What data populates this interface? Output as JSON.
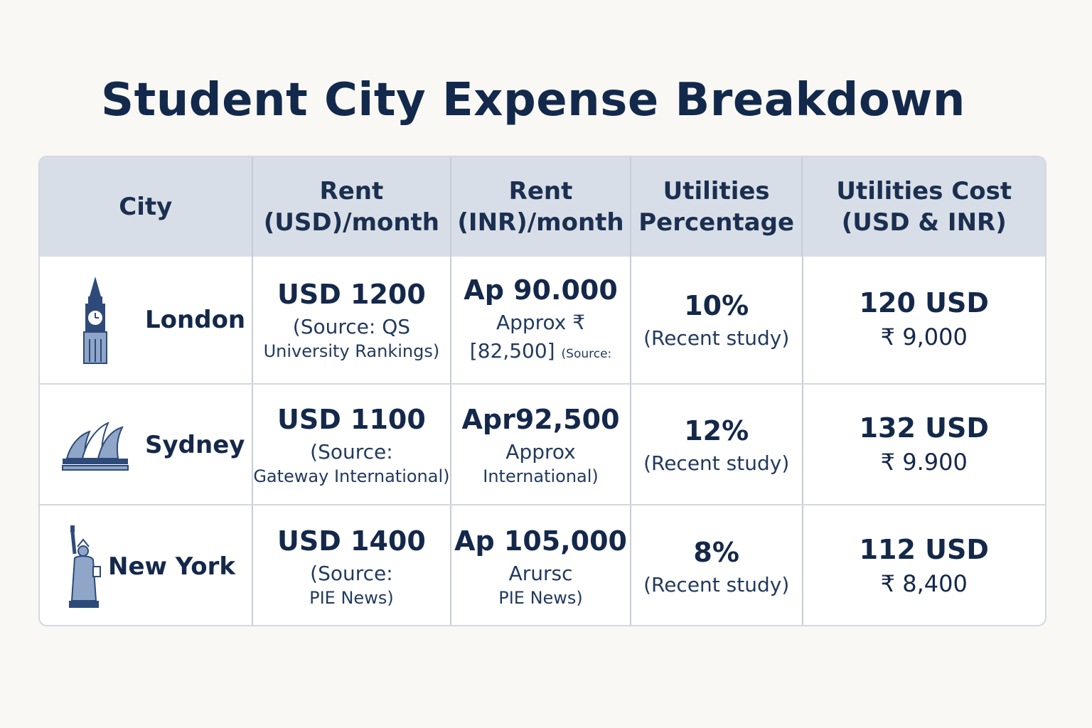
{
  "title": "Student City Expense Breakdown",
  "colors": {
    "title": "#12294b",
    "header_bg": "#d8dee7",
    "border": "#d3d8e0",
    "icon": "#2e4a78",
    "icon_fill": "#8fa6c9"
  },
  "chart_data": {
    "type": "table",
    "columns": [
      {
        "line1": "City",
        "line2": ""
      },
      {
        "line1": "Rent",
        "line2": "(USD)/month"
      },
      {
        "line1": "Rent",
        "line2": "(INR)/month"
      },
      {
        "line1": "Utilities",
        "line2": "Percentage"
      },
      {
        "line1": "Utilities Cost",
        "line2": "(USD & INR)"
      }
    ],
    "rows": [
      {
        "city": "London",
        "icon": "big-ben-icon",
        "rent_usd": {
          "value": "USD 1200",
          "note1": "(Source: QS",
          "note2": "University Rankings)"
        },
        "rent_inr": {
          "value": "Ap 90.000",
          "note1": "Approx ₹",
          "note2": "[82,500]",
          "note3": "(Source:"
        },
        "util_pct": {
          "value": "10%",
          "note1": "(Recent study)"
        },
        "util_cost": {
          "usd": "120 USD",
          "inr": "₹ 9,000"
        }
      },
      {
        "city": "Sydney",
        "icon": "opera-house-icon",
        "rent_usd": {
          "value": "USD 1100",
          "note1": "(Source:",
          "note2": "Gateway International)"
        },
        "rent_inr": {
          "value": "Apr92,500",
          "note1": "Approx",
          "note2": "International)",
          "note3": ""
        },
        "util_pct": {
          "value": "12%",
          "note1": "(Recent study)"
        },
        "util_cost": {
          "usd": "132 USD",
          "inr": "₹ 9.900"
        }
      },
      {
        "city": "New York",
        "icon": "statue-of-liberty-icon",
        "rent_usd": {
          "value": "USD 1400",
          "note1": "(Source:",
          "note2": "PIE News)"
        },
        "rent_inr": {
          "value": "Ap 105,000",
          "note1": "Arursc",
          "note2": "PIE News)",
          "note3": ""
        },
        "util_pct": {
          "value": "8%",
          "note1": "(Recent study)"
        },
        "util_cost": {
          "usd": "112 USD",
          "inr": "₹ 8,400"
        }
      }
    ]
  }
}
